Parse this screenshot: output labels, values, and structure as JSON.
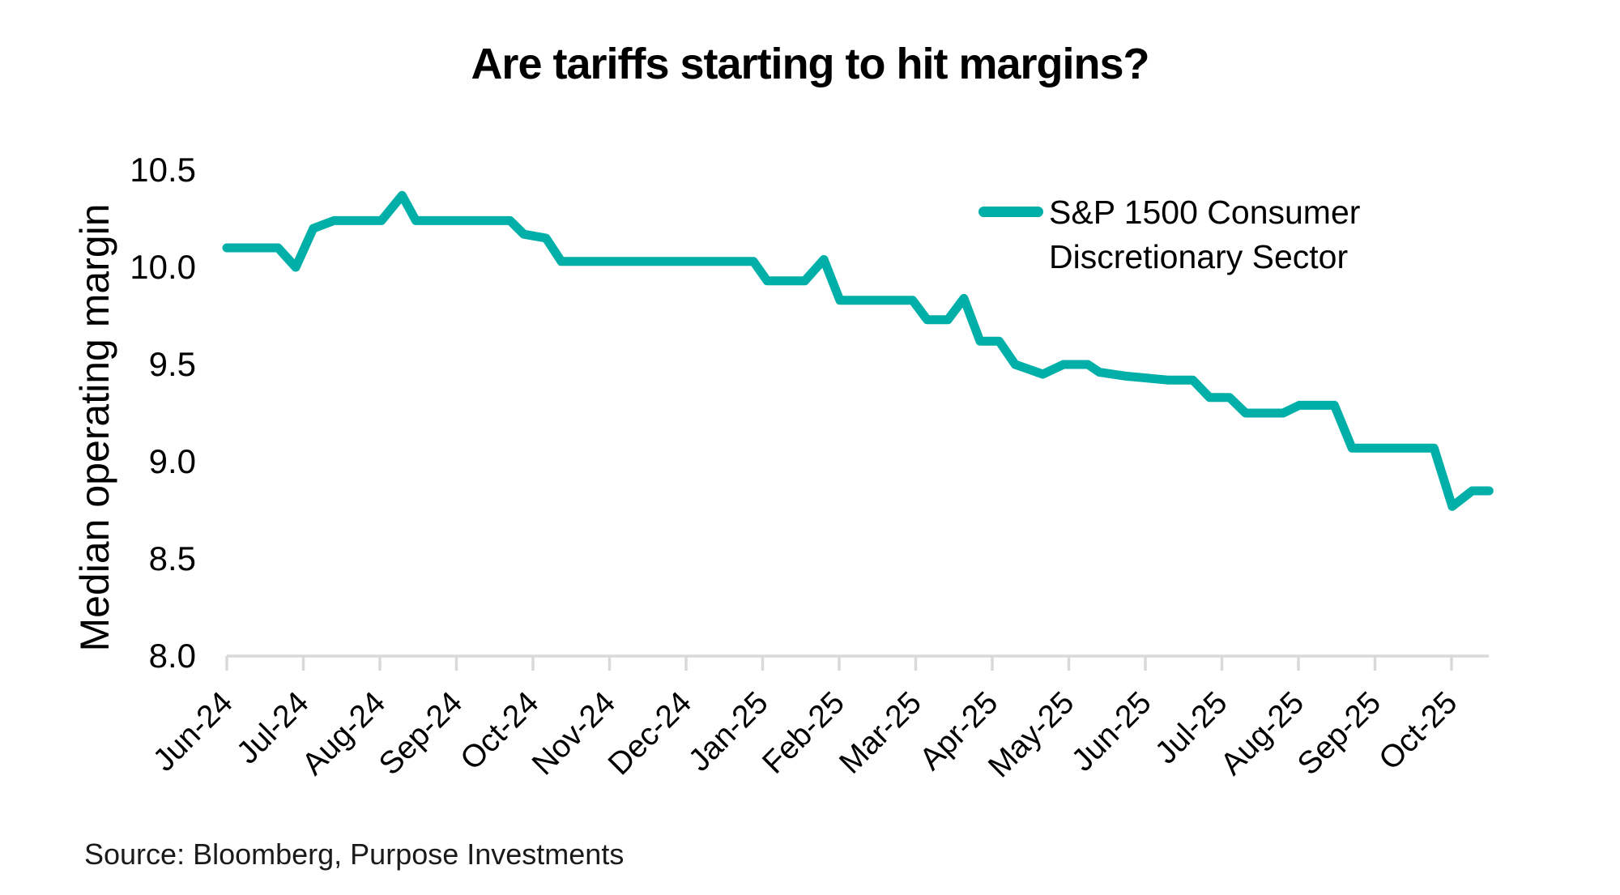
{
  "chart_data": {
    "type": "line",
    "title": "Are tariffs starting to hit margins?",
    "ylabel": "Median operating margin",
    "xlabel": "",
    "source_note": "Source: Bloomberg, Purpose Investments",
    "grid": false,
    "legend_position": "top-right-inside",
    "legend_lines": [
      "S&P 1500 Consumer",
      "Discretionary Sector"
    ],
    "ylim": [
      8.0,
      10.5
    ],
    "y_ticks": [
      "10.5",
      "10.0",
      "9.5",
      "9.0",
      "8.5",
      "8.0"
    ],
    "y_tick_values": [
      10.5,
      10.0,
      9.5,
      9.0,
      8.5,
      8.0
    ],
    "x_tick_labels": [
      "Jun-24",
      "Jul-24",
      "Aug-24",
      "Sep-24",
      "Oct-24",
      "Nov-24",
      "Dec-24",
      "Jan-25",
      "Feb-25",
      "Mar-25",
      "Apr-25",
      "May-25",
      "Jun-25",
      "Jul-25",
      "Aug-25",
      "Sep-25",
      "Oct-25"
    ],
    "x_tick_rotation": 45,
    "x_unit": "months since Jun-24 tick (fractional values = intra-month weekly readings)",
    "colors": {
      "line": "#00b0a8",
      "axis": "#d9d9d9",
      "text": "#000000"
    },
    "series": [
      {
        "name": "S&P 1500 Consumer Discretionary Sector",
        "color": "#00b0a8",
        "points": [
          [
            0.0,
            10.1
          ],
          [
            0.67,
            10.1
          ],
          [
            0.9,
            10.0
          ],
          [
            1.13,
            10.2
          ],
          [
            1.4,
            10.24
          ],
          [
            2.02,
            10.24
          ],
          [
            2.29,
            10.37
          ],
          [
            2.47,
            10.24
          ],
          [
            3.7,
            10.24
          ],
          [
            3.88,
            10.17
          ],
          [
            4.17,
            10.15
          ],
          [
            4.37,
            10.03
          ],
          [
            6.88,
            10.03
          ],
          [
            7.06,
            9.93
          ],
          [
            7.55,
            9.93
          ],
          [
            7.8,
            10.04
          ],
          [
            8.01,
            9.83
          ],
          [
            8.96,
            9.83
          ],
          [
            9.15,
            9.73
          ],
          [
            9.42,
            9.73
          ],
          [
            9.63,
            9.84
          ],
          [
            9.84,
            9.62
          ],
          [
            10.09,
            9.62
          ],
          [
            10.3,
            9.5
          ],
          [
            10.66,
            9.45
          ],
          [
            10.93,
            9.5
          ],
          [
            11.25,
            9.5
          ],
          [
            11.4,
            9.46
          ],
          [
            11.75,
            9.44
          ],
          [
            12.29,
            9.42
          ],
          [
            12.62,
            9.42
          ],
          [
            12.84,
            9.33
          ],
          [
            13.1,
            9.33
          ],
          [
            13.31,
            9.25
          ],
          [
            13.8,
            9.25
          ],
          [
            14.01,
            9.29
          ],
          [
            14.47,
            9.29
          ],
          [
            14.7,
            9.07
          ],
          [
            15.77,
            9.07
          ],
          [
            16.01,
            8.77
          ],
          [
            16.27,
            8.85
          ],
          [
            16.49,
            8.85
          ]
        ]
      }
    ]
  }
}
